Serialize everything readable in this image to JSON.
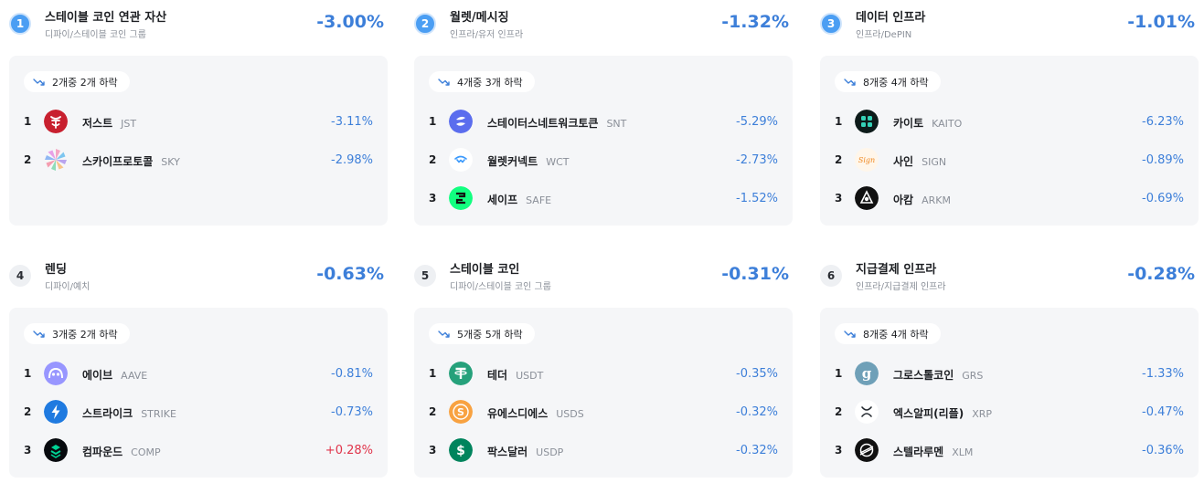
{
  "categories": [
    {
      "rank": "1",
      "title": "스테이블 코인 연관 자산",
      "subtitle": "디파이/스테이블 코인 그룹",
      "change": "-3.00%",
      "summary": "2개중 2개 하락",
      "coins": [
        {
          "rank": "1",
          "name": "저스트",
          "symbol": "JST",
          "change": "-3.11%",
          "icon": "just-icon"
        },
        {
          "rank": "2",
          "name": "스카이프로토콜",
          "symbol": "SKY",
          "change": "-2.98%",
          "icon": "sky-icon"
        }
      ]
    },
    {
      "rank": "2",
      "title": "월렛/메시징",
      "subtitle": "인프라/유저 인프라",
      "change": "-1.32%",
      "summary": "4개중 3개 하락",
      "coins": [
        {
          "rank": "1",
          "name": "스테이터스네트워크토큰",
          "symbol": "SNT",
          "change": "-5.29%",
          "icon": "status-icon"
        },
        {
          "rank": "2",
          "name": "월렛커넥트",
          "symbol": "WCT",
          "change": "-2.73%",
          "icon": "walletconnect-icon"
        },
        {
          "rank": "3",
          "name": "세이프",
          "symbol": "SAFE",
          "change": "-1.52%",
          "icon": "safe-icon"
        }
      ]
    },
    {
      "rank": "3",
      "title": "데이터 인프라",
      "subtitle": "인프라/DePIN",
      "change": "-1.01%",
      "summary": "8개중 4개 하락",
      "coins": [
        {
          "rank": "1",
          "name": "카이토",
          "symbol": "KAITO",
          "change": "-6.23%",
          "icon": "kaito-icon"
        },
        {
          "rank": "2",
          "name": "사인",
          "symbol": "SIGN",
          "change": "-0.89%",
          "icon": "sign-icon",
          "icon_text": "Sign"
        },
        {
          "rank": "3",
          "name": "아캄",
          "symbol": "ARKM",
          "change": "-0.69%",
          "icon": "arkham-icon"
        }
      ]
    },
    {
      "rank": "4",
      "title": "렌딩",
      "subtitle": "디파이/예치",
      "change": "-0.63%",
      "summary": "3개중 2개 하락",
      "coins": [
        {
          "rank": "1",
          "name": "에이브",
          "symbol": "AAVE",
          "change": "-0.81%",
          "icon": "aave-icon"
        },
        {
          "rank": "2",
          "name": "스트라이크",
          "symbol": "STRIKE",
          "change": "-0.73%",
          "icon": "strike-icon"
        },
        {
          "rank": "3",
          "name": "컴파운드",
          "symbol": "COMP",
          "change": "+0.28%",
          "icon": "compound-icon"
        }
      ]
    },
    {
      "rank": "5",
      "title": "스테이블 코인",
      "subtitle": "디파이/스테이블 코인 그룹",
      "change": "-0.31%",
      "summary": "5개중 5개 하락",
      "coins": [
        {
          "rank": "1",
          "name": "테더",
          "symbol": "USDT",
          "change": "-0.35%",
          "icon": "tether-icon"
        },
        {
          "rank": "2",
          "name": "유에스디에스",
          "symbol": "USDS",
          "change": "-0.32%",
          "icon": "usds-icon"
        },
        {
          "rank": "3",
          "name": "팍스달러",
          "symbol": "USDP",
          "change": "-0.32%",
          "icon": "paxdollar-icon"
        }
      ]
    },
    {
      "rank": "6",
      "title": "지급결제 인프라",
      "subtitle": "인프라/지급결제 인프라",
      "change": "-0.28%",
      "summary": "8개중 4개 하락",
      "coins": [
        {
          "rank": "1",
          "name": "그로스톨코인",
          "symbol": "GRS",
          "change": "-1.33%",
          "icon": "groestlcoin-icon"
        },
        {
          "rank": "2",
          "name": "엑스알피(리플)",
          "symbol": "XRP",
          "change": "-0.47%",
          "icon": "xrp-icon"
        },
        {
          "rank": "3",
          "name": "스텔라루멘",
          "symbol": "XLM",
          "change": "-0.36%",
          "icon": "stellar-icon"
        }
      ]
    }
  ],
  "colors": {
    "down": "#3d7fd9",
    "up": "#e0344a",
    "badge_top": "#4b9ef3",
    "card_bg": "#f5f6f8"
  }
}
